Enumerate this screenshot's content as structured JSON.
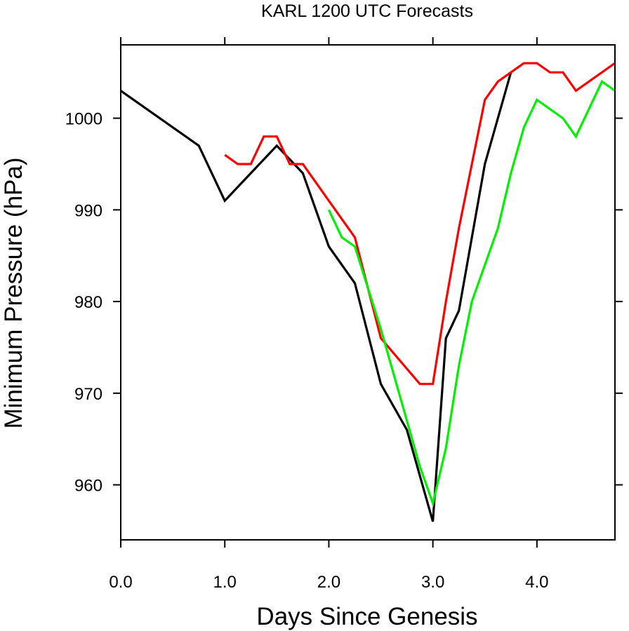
{
  "chart_data": {
    "type": "line",
    "title": "KARL 1200 UTC Forecasts",
    "xlabel": "Days Since Genesis",
    "ylabel": "Minimum Pressure (hPa)",
    "xlim": [
      0.0,
      4.75
    ],
    "ylim": [
      954,
      1008
    ],
    "xticks": [
      0.0,
      1.0,
      2.0,
      3.0,
      4.0
    ],
    "xtick_labels": [
      "0.0",
      "1.0",
      "2.0",
      "3.0",
      "4.0"
    ],
    "yticks": [
      960,
      970,
      980,
      990,
      1000
    ],
    "ytick_labels": [
      "960",
      "970",
      "980",
      "990",
      "1000"
    ],
    "grid": false,
    "legend": "none",
    "series": [
      {
        "color": "#000000",
        "x": [
          0.0,
          0.75,
          1.0,
          1.25,
          1.5,
          1.75,
          2.0,
          2.25,
          2.5,
          2.75,
          3.0,
          3.125,
          3.25,
          3.5,
          3.75
        ],
        "y": [
          1003,
          997,
          991,
          994,
          997,
          994,
          986,
          982,
          971,
          966,
          956,
          976,
          979,
          995,
          1005
        ]
      },
      {
        "color": "#ff0000",
        "x": [
          1.0,
          1.125,
          1.25,
          1.375,
          1.5,
          1.625,
          1.75,
          2.0,
          2.25,
          2.5,
          2.875,
          3.0,
          3.125,
          3.25,
          3.5,
          3.625,
          3.75,
          3.875,
          4.0,
          4.125,
          4.25,
          4.375,
          4.75
        ],
        "y": [
          996,
          995,
          995,
          998,
          998,
          995,
          995,
          991,
          987,
          976,
          971,
          971,
          980,
          988,
          1002,
          1004,
          1005,
          1006,
          1006,
          1005,
          1005,
          1003,
          1006
        ]
      },
      {
        "color": "#00ee00",
        "x": [
          2.0,
          2.125,
          2.25,
          2.5,
          2.75,
          2.875,
          3.0,
          3.125,
          3.25,
          3.375,
          3.625,
          3.75,
          3.875,
          4.0,
          4.25,
          4.375,
          4.625,
          4.75
        ],
        "y": [
          990,
          987,
          986,
          977,
          967,
          962,
          958,
          964,
          973,
          980,
          988,
          994,
          999,
          1002,
          1000,
          998,
          1004,
          1003
        ]
      }
    ]
  }
}
